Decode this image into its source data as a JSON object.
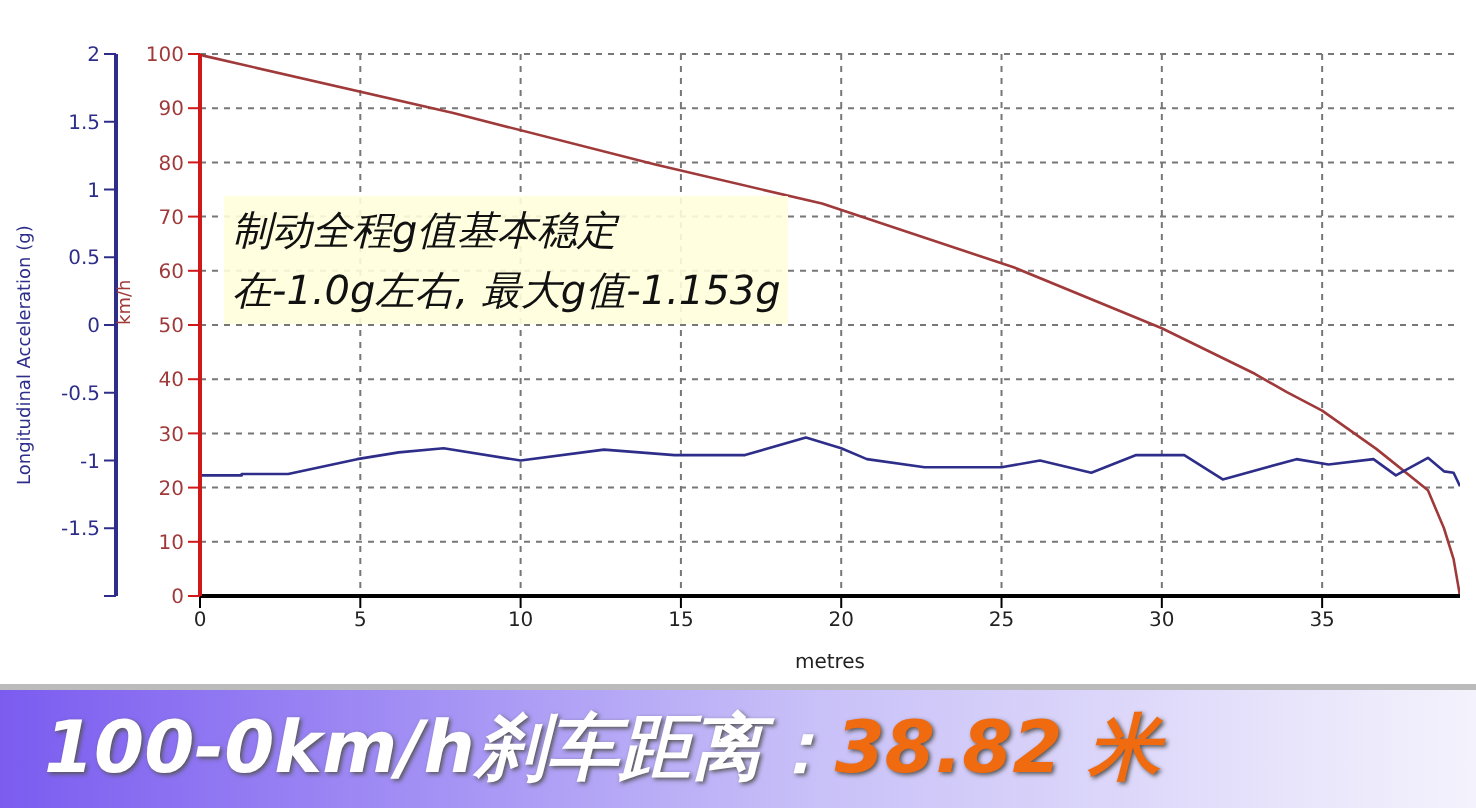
{
  "chart_data": {
    "type": "line",
    "title": "100-0km/h刹车距离：38.82 米",
    "xlabel": "metres",
    "ylabel": "km/h",
    "y2label": "Longitudinal Acceleration (g)",
    "annotations": [
      "制动全程g值基本稳定",
      "在-1.0g左右, 最大g值-1.153g"
    ],
    "series": [
      {
        "color": "#a03a3a",
        "x": [
          0,
          0.1,
          7.9,
          14.2,
          19.4,
          25.4,
          30.0,
          32.9,
          33.9,
          35.0,
          36.7,
          38.3,
          38.8,
          39.1,
          39.3
        ],
        "values": [
          100,
          99.7,
          89.1,
          79.6,
          72.4,
          60.6,
          49.4,
          41,
          37.6,
          34.2,
          27.1,
          19.5,
          12.5,
          6.8,
          0
        ]
      },
      {
        "color": "#2e2e8a",
        "axis": "y2",
        "x": [
          0,
          1.3,
          1.3,
          2.75,
          4.9,
          6.2,
          7.6,
          10.0,
          12.6,
          14.8,
          17.0,
          18.9,
          20.0,
          20.8,
          22.6,
          25.0,
          26.2,
          27.8,
          29.2,
          30.7,
          31.9,
          34.2,
          35.2,
          36.6,
          37.3,
          38.3,
          38.8,
          39.1,
          39.3
        ],
        "values": [
          -1.11,
          -1.11,
          -1.1,
          -1.1,
          -0.99,
          -0.94,
          -0.91,
          -1.0,
          -0.92,
          -0.96,
          -0.96,
          -0.83,
          -0.91,
          -0.99,
          -1.05,
          -1.05,
          -1.0,
          -1.09,
          -0.96,
          -0.96,
          -1.14,
          -0.99,
          -1.03,
          -0.99,
          -1.11,
          -0.98,
          -1.08,
          -1.09,
          -1.19
        ]
      }
    ],
    "xlim": [
      0,
      39.3
    ],
    "xticks": [
      0,
      5,
      10,
      15,
      20,
      25,
      30,
      35
    ],
    "ylim": [
      0,
      100
    ],
    "yticks": [
      0,
      10,
      20,
      30,
      40,
      50,
      60,
      70,
      80,
      90,
      100
    ],
    "y2lim": [
      -2,
      2
    ],
    "y2ticks": [
      {
        "value": -2,
        "label": null
      },
      -1.5,
      -1,
      -0.5,
      0,
      0.5,
      1,
      1.5,
      2
    ],
    "grid": true,
    "legend": false
  }
}
